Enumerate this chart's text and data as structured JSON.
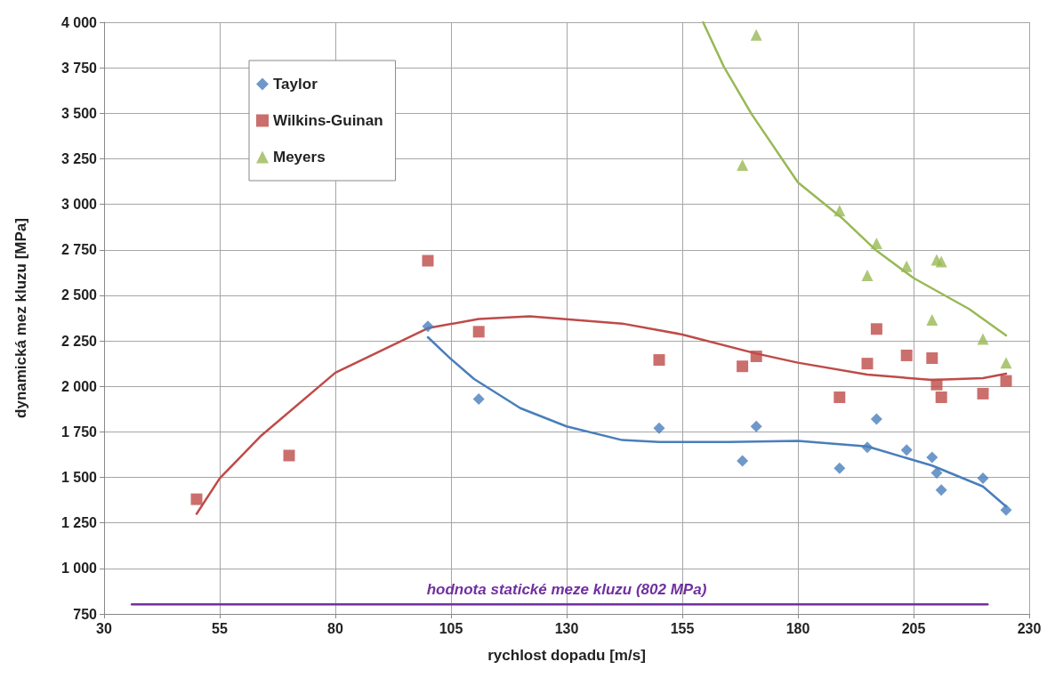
{
  "chart_data": {
    "type": "scatter",
    "xlabel": "rychlost dopadu [m/s]",
    "ylabel": "dynamická mez kluzu [MPa]",
    "xlim": [
      30,
      230
    ],
    "xticks": [
      30,
      55,
      80,
      105,
      130,
      155,
      180,
      205,
      230
    ],
    "ylim": [
      750,
      4000
    ],
    "yticks": [
      750,
      {
        "value": 1000,
        "label": "1 000"
      },
      {
        "value": 1250,
        "label": "1 250"
      },
      {
        "value": 1500,
        "label": "1 500"
      },
      {
        "value": 1750,
        "label": "1 750"
      },
      {
        "value": 2000,
        "label": "2 000"
      },
      {
        "value": 2250,
        "label": "2 250"
      },
      {
        "value": 2500,
        "label": "2 500"
      },
      {
        "value": 2750,
        "label": "2 750"
      },
      {
        "value": 3000,
        "label": "3 000"
      },
      {
        "value": 3250,
        "label": "3 250"
      },
      {
        "value": 3500,
        "label": "3 500"
      },
      {
        "value": 3750,
        "label": "3 750"
      },
      {
        "value": 4000,
        "label": "4 000"
      }
    ],
    "grid": true,
    "legend": "top left",
    "series": [
      {
        "name": "Taylor",
        "color": "#4a7ebb",
        "marker": "diamond",
        "x": [
          100,
          111,
          150,
          168,
          171,
          189,
          195,
          197,
          203.5,
          209,
          210,
          211,
          220,
          225
        ],
        "values": [
          2330,
          1930,
          1770,
          1590,
          1780,
          1550,
          1665,
          1820,
          1650,
          1610,
          1525,
          1430,
          1495,
          1320
        ]
      },
      {
        "name": "Wilkins-Guinan",
        "color": "#be4b48",
        "marker": "square",
        "x": [
          50,
          70,
          100,
          111,
          150,
          168,
          171,
          189,
          195,
          197,
          203.5,
          209,
          210,
          211,
          220,
          225
        ],
        "values": [
          1380,
          1620,
          2690,
          2300,
          2145,
          2110,
          2165,
          1940,
          2125,
          2315,
          2170,
          2155,
          2010,
          1940,
          1960,
          2030
        ]
      },
      {
        "name": "Meyers",
        "color": "#98b954",
        "marker": "triangle",
        "x": [
          168,
          171,
          189,
          195,
          197,
          203.5,
          209,
          210,
          211,
          220,
          225
        ],
        "values": [
          3215,
          3930,
          2965,
          2610,
          2785,
          2660,
          2365,
          2695,
          2685,
          2260,
          2130
        ]
      },
      {
        "type": "line",
        "color": "#4a7ebb",
        "marker": "none",
        "x": [
          100,
          105,
          110,
          120,
          130,
          142,
          150,
          165,
          180,
          195,
          209,
          220,
          225
        ],
        "values": [
          2270,
          2150,
          2040,
          1880,
          1780,
          1705,
          1695,
          1695,
          1700,
          1670,
          1565,
          1450,
          1340
        ]
      },
      {
        "type": "line",
        "color": "#be4b48",
        "marker": "none",
        "x": [
          50,
          55,
          64,
          80,
          100,
          111,
          122,
          142,
          155,
          171,
          180,
          195,
          209,
          220,
          225
        ],
        "values": [
          1300,
          1495,
          1730,
          2075,
          2320,
          2370,
          2385,
          2345,
          2285,
          2180,
          2130,
          2065,
          2035,
          2045,
          2070
        ]
      },
      {
        "type": "line",
        "color": "#98b954",
        "marker": "none",
        "x": [
          159.5,
          164,
          170,
          180,
          189.5,
          197,
          205,
          217,
          225
        ],
        "values": [
          4000,
          3755,
          3495,
          3120,
          2925,
          2745,
          2595,
          2425,
          2280
        ]
      },
      {
        "type": "line",
        "color": "#7030a0",
        "marker": "none",
        "x": [
          36,
          221
        ],
        "values": [
          802,
          802
        ]
      }
    ],
    "annotations": [
      {
        "text": "hodnota statické meze kluzu (802 MPa)",
        "x": 130,
        "y": 802
      }
    ]
  }
}
